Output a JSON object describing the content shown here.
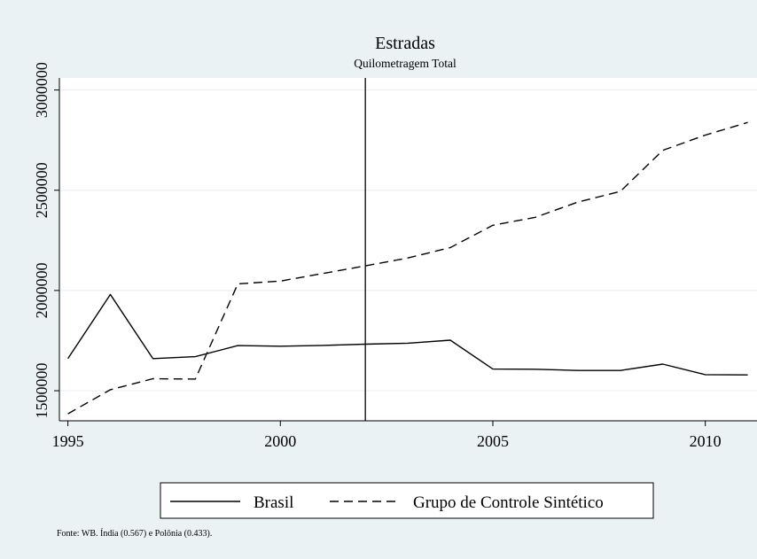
{
  "chart_data": {
    "type": "line",
    "title": "Estradas",
    "subtitle": "Quilometragem Total",
    "xlabel": "",
    "ylabel": "",
    "xlim": [
      1994.8,
      2011.3
    ],
    "ylim": [
      1350000,
      3060000
    ],
    "x_ticks": [
      1995,
      2000,
      2005,
      2010
    ],
    "y_ticks": [
      1500000,
      2000000,
      2500000,
      3000000
    ],
    "grid": "horizontal",
    "vertical_line_x": 2002,
    "legend_position": "bottom",
    "note": "Fonte: WB. Índia (0.567) e Polônia (0.433).",
    "x": [
      1995,
      1996,
      1997,
      1998,
      1999,
      2000,
      2001,
      2002,
      2003,
      2004,
      2005,
      2006,
      2007,
      2008,
      2009,
      2010,
      2011
    ],
    "series": [
      {
        "name": "Brasil",
        "style": "solid",
        "values": [
          1660000,
          1980000,
          1660000,
          1670000,
          1725000,
          1722000,
          1726000,
          1732000,
          1737000,
          1752000,
          1608000,
          1607000,
          1601000,
          1601000,
          1633000,
          1580000,
          1579000
        ]
      },
      {
        "name": "Grupo de Controle Sintético",
        "style": "dashed",
        "values": [
          1385000,
          1505000,
          1560000,
          1558000,
          2033000,
          2047000,
          2085000,
          2123000,
          2162000,
          2214000,
          2325000,
          2365000,
          2441000,
          2494000,
          2699000,
          2775000,
          2838000
        ]
      }
    ],
    "colors": {
      "background": "#eaf2f3",
      "plot": "#ffffff",
      "line": "#000000",
      "grid": "#eaf2f3"
    }
  }
}
